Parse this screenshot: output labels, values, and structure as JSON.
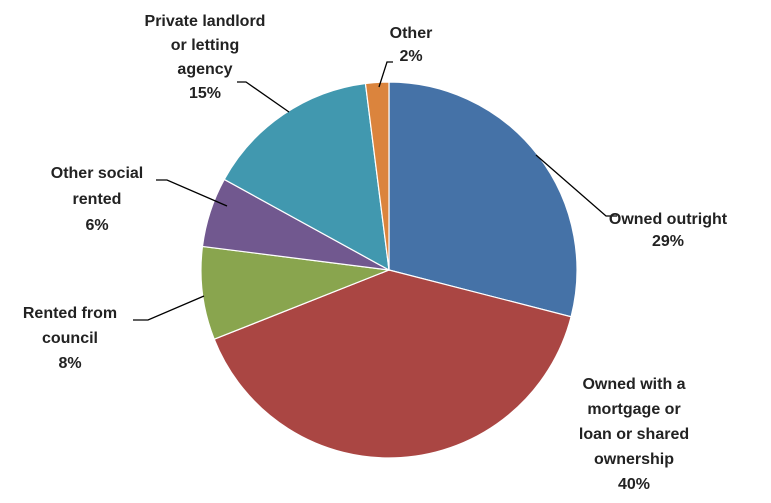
{
  "chart_data": {
    "type": "pie",
    "title": "",
    "slices": [
      {
        "label_lines": [
          "Owned outright"
        ],
        "value_label": "29%",
        "value": 29,
        "color": "#4572A7"
      },
      {
        "label_lines": [
          "Owned with a",
          "mortgage or",
          "loan or shared",
          "ownership"
        ],
        "value_label": "40%",
        "value": 40,
        "color": "#AA4643"
      },
      {
        "label_lines": [
          "Rented from",
          "council"
        ],
        "value_label": "8%",
        "value": 8,
        "color": "#89A54E"
      },
      {
        "label_lines": [
          "Other social",
          "rented"
        ],
        "value_label": "6%",
        "value": 6,
        "color": "#71588F"
      },
      {
        "label_lines": [
          "Private landlord",
          "or letting",
          "agency"
        ],
        "value_label": "15%",
        "value": 15,
        "color": "#4198AF"
      },
      {
        "label_lines": [
          "Other"
        ],
        "value_label": "2%",
        "value": 2,
        "color": "#DB843D"
      }
    ]
  }
}
